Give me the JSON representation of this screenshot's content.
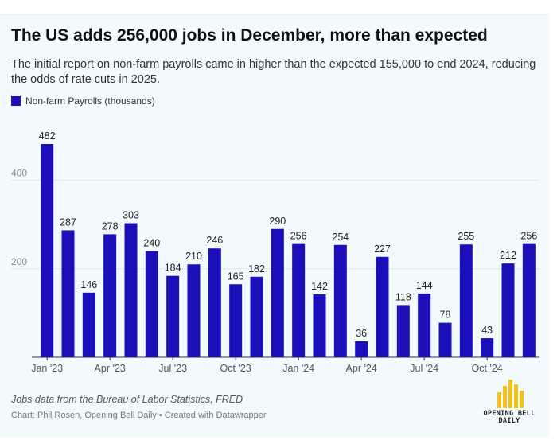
{
  "header": {
    "title": "The US adds 256,000 jobs in December, more than expected",
    "subtitle": "The initial report on non-farm payrolls came in higher than the expected 155,000 to end 2024, reducing the odds of rate cuts in 2025."
  },
  "colors": {
    "bar": "#1a0fb8",
    "gridline": "#dde5e9",
    "background": "#f3fafd"
  },
  "chart_data": {
    "type": "bar",
    "categories": [
      "Jan 2023",
      "Feb 2023",
      "Mar 2023",
      "Apr 2023",
      "May 2023",
      "Jun 2023",
      "Jul 2023",
      "Aug 2023",
      "Sep 2023",
      "Oct 2023",
      "Nov 2023",
      "Dec 2023",
      "Jan 2024",
      "Feb 2024",
      "Mar 2024",
      "Apr 2024",
      "May 2024",
      "Jun 2024",
      "Jul 2024",
      "Aug 2024",
      "Sep 2024",
      "Oct 2024",
      "Nov 2024",
      "Dec 2024"
    ],
    "series": [
      {
        "name": "Non-farm Payrolls (thousands)",
        "values": [
          482,
          287,
          146,
          278,
          303,
          240,
          184,
          210,
          246,
          165,
          182,
          290,
          256,
          142,
          254,
          36,
          227,
          118,
          144,
          78,
          255,
          43,
          212,
          256
        ]
      }
    ],
    "x_ticks": [
      {
        "index": 0,
        "label": "Jan '23"
      },
      {
        "index": 3,
        "label": "Apr '23"
      },
      {
        "index": 6,
        "label": "Jul '23"
      },
      {
        "index": 9,
        "label": "Oct '23"
      },
      {
        "index": 12,
        "label": "Jan '24"
      },
      {
        "index": 15,
        "label": "Apr '24"
      },
      {
        "index": 18,
        "label": "Jul '24"
      },
      {
        "index": 21,
        "label": "Oct '24"
      }
    ],
    "y_ticks": [
      200,
      400
    ],
    "ylim": [
      0,
      482
    ],
    "grid": true,
    "legend_position": "top-left",
    "data_labels": true
  },
  "footer": {
    "notes": "Jobs data from the Bureau of Labor Statistics, FRED",
    "credit": "Chart: Phil Rosen, Opening Bell Daily • Created with Datawrapper",
    "logo_line1": "OPENING BELL",
    "logo_line2": "DAILY"
  }
}
